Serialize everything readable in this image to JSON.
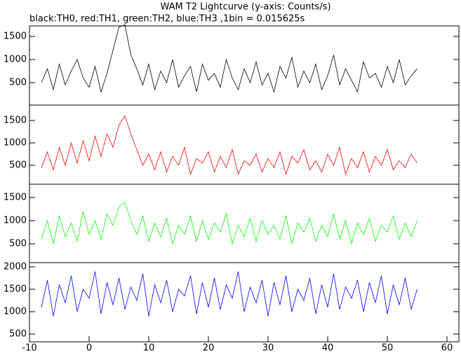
{
  "chart_data": [
    {
      "type": "line",
      "title": "WAM T2 Lightcurve (y-axis: Counts/s)",
      "subtitle": "black:TH0, red:TH1, green:TH2, blue:TH3 ,1bin = 0.015625s",
      "x": [
        -8,
        -7,
        -6,
        -5,
        -4,
        -3,
        -2,
        -1,
        0,
        1,
        2,
        3,
        4,
        5,
        6,
        7,
        8,
        9,
        10,
        11,
        12,
        13,
        14,
        15,
        16,
        17,
        18,
        19,
        20,
        21,
        22,
        23,
        24,
        25,
        26,
        27,
        28,
        29,
        30,
        31,
        32,
        33,
        34,
        35,
        36,
        37,
        38,
        39,
        40,
        41,
        42,
        43,
        44,
        45,
        46,
        47,
        48,
        49,
        50,
        51,
        52,
        53,
        54,
        55
      ],
      "series": [
        {
          "name": "TH0",
          "color": "#000000",
          "values": [
            500,
            800,
            350,
            900,
            450,
            750,
            1000,
            600,
            400,
            850,
            300,
            700,
            1200,
            1700,
            1750,
            1100,
            800,
            450,
            900,
            350,
            750,
            500,
            1000,
            400,
            650,
            850,
            300,
            900,
            550,
            700,
            400,
            1000,
            600,
            350,
            800,
            500,
            950,
            450,
            700,
            300,
            850,
            600,
            1050,
            400,
            750,
            500,
            900,
            350,
            650,
            1100,
            450,
            800,
            550,
            300,
            950,
            600,
            700,
            400,
            850,
            500,
            1000,
            450,
            650,
            800
          ]
        }
      ],
      "xlim": [
        -10,
        62
      ],
      "ylim": [
        15,
        1727
      ],
      "yticks": [
        500,
        1000,
        1500
      ]
    },
    {
      "type": "line",
      "x": [
        -8,
        -7,
        -6,
        -5,
        -4,
        -3,
        -2,
        -1,
        0,
        1,
        2,
        3,
        4,
        5,
        6,
        7,
        8,
        9,
        10,
        11,
        12,
        13,
        14,
        15,
        16,
        17,
        18,
        19,
        20,
        21,
        22,
        23,
        24,
        25,
        26,
        27,
        28,
        29,
        30,
        31,
        32,
        33,
        34,
        35,
        36,
        37,
        38,
        39,
        40,
        41,
        42,
        43,
        44,
        45,
        46,
        47,
        48,
        49,
        50,
        51,
        52,
        53,
        54,
        55
      ],
      "series": [
        {
          "name": "TH1",
          "color": "#ff0000",
          "values": [
            450,
            800,
            400,
            900,
            500,
            1000,
            550,
            1050,
            600,
            1150,
            700,
            1200,
            900,
            1400,
            1600,
            1200,
            850,
            500,
            750,
            400,
            800,
            350,
            700,
            500,
            900,
            300,
            650,
            550,
            800,
            350,
            700,
            450,
            850,
            300,
            600,
            500,
            750,
            350,
            650,
            450,
            800,
            300,
            700,
            550,
            850,
            400,
            600,
            350,
            750,
            500,
            900,
            300,
            650,
            450,
            800,
            350,
            700,
            500,
            850,
            400,
            600,
            450,
            750,
            550
          ]
        }
      ],
      "xlim": [
        -10,
        62
      ],
      "ylim": [
        78,
        1844
      ],
      "yticks": [
        500,
        1000,
        1500
      ]
    },
    {
      "type": "line",
      "x": [
        -8,
        -7,
        -6,
        -5,
        -4,
        -3,
        -2,
        -1,
        0,
        1,
        2,
        3,
        4,
        5,
        6,
        7,
        8,
        9,
        10,
        11,
        12,
        13,
        14,
        15,
        16,
        17,
        18,
        19,
        20,
        21,
        22,
        23,
        24,
        25,
        26,
        27,
        28,
        29,
        30,
        31,
        32,
        33,
        34,
        35,
        36,
        37,
        38,
        39,
        40,
        41,
        42,
        43,
        44,
        45,
        46,
        47,
        48,
        49,
        50,
        51,
        52,
        53,
        54,
        55
      ],
      "series": [
        {
          "name": "TH2",
          "color": "#00ff00",
          "values": [
            600,
            1000,
            500,
            1100,
            650,
            950,
            550,
            1200,
            700,
            1000,
            600,
            1150,
            900,
            1300,
            1400,
            1000,
            700,
            1100,
            550,
            950,
            650,
            1050,
            500,
            900,
            700,
            1100,
            550,
            1000,
            600,
            950,
            750,
            1150,
            500,
            900,
            650,
            1050,
            550,
            1000,
            700,
            900,
            600,
            1100,
            500,
            950,
            750,
            1050,
            550,
            900,
            650,
            1150,
            600,
            1000,
            500,
            950,
            700,
            1050,
            550,
            900,
            750,
            1100,
            600,
            950,
            650,
            1000
          ]
        }
      ],
      "xlim": [
        -10,
        62
      ],
      "ylim": [
        91,
        1788
      ],
      "yticks": [
        500,
        1000,
        1500
      ]
    },
    {
      "type": "line",
      "x": [
        -8,
        -7,
        -6,
        -5,
        -4,
        -3,
        -2,
        -1,
        0,
        1,
        2,
        3,
        4,
        5,
        6,
        7,
        8,
        9,
        10,
        11,
        12,
        13,
        14,
        15,
        16,
        17,
        18,
        19,
        20,
        21,
        22,
        23,
        24,
        25,
        26,
        27,
        28,
        29,
        30,
        31,
        32,
        33,
        34,
        35,
        36,
        37,
        38,
        39,
        40,
        41,
        42,
        43,
        44,
        45,
        46,
        47,
        48,
        49,
        50,
        51,
        52,
        53,
        54,
        55
      ],
      "series": [
        {
          "name": "TH3",
          "color": "#0000ff",
          "values": [
            1100,
            1700,
            900,
            1600,
            1200,
            1800,
            1000,
            1500,
            1300,
            1900,
            950,
            1650,
            1150,
            1750,
            1050,
            1550,
            1250,
            1850,
            900,
            1600,
            1200,
            1700,
            1000,
            1500,
            1350,
            1800,
            950,
            1650,
            1100,
            1750,
            1050,
            1600,
            1300,
            1900,
            1000,
            1550,
            1200,
            1700,
            900,
            1650,
            1150,
            1800,
            1000,
            1500,
            1250,
            1750,
            950,
            1600,
            1100,
            1850,
            1050,
            1550,
            1300,
            1700,
            1000,
            1650,
            1200,
            1800,
            950,
            1600,
            1150,
            1750,
            1050,
            1500
          ]
        }
      ],
      "xlim": [
        -10,
        62
      ],
      "xticks": [
        -10,
        0,
        10,
        20,
        30,
        40,
        50,
        60
      ],
      "ylim": [
        328,
        2094
      ],
      "yticks": [
        500,
        1000,
        1500,
        2000
      ]
    }
  ]
}
